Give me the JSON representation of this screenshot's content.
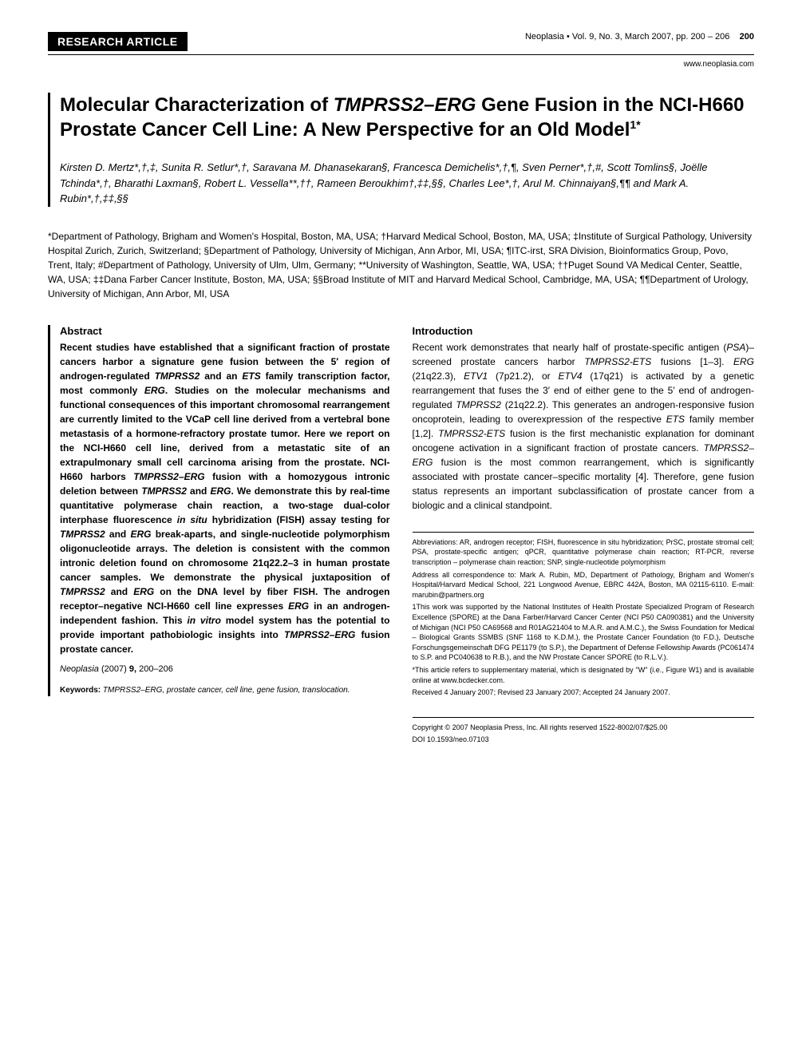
{
  "header": {
    "badge": "RESEARCH ARTICLE",
    "journal": "Neoplasia",
    "volume": "Vol. 9, No. 3, March 2007, pp. 200 – 206",
    "page": "200",
    "website": "www.neoplasia.com"
  },
  "title": {
    "line1": "Molecular Characterization of ",
    "gene1": "TMPRSS2–ERG",
    "line2": " Gene Fusion in the NCI-H660 Prostate Cancer Cell Line: A New Perspective for an Old Model",
    "sup": "1*"
  },
  "authors": "Kirsten D. Mertz*,†,‡, Sunita R. Setlur*,†, Saravana M. Dhanasekaran§, Francesca Demichelis*,†,¶, Sven Perner*,†,#, Scott Tomlins§, Joëlle Tchinda*,†, Bharathi Laxman§, Robert L. Vessella**,††, Rameen Beroukhim†,‡‡,§§, Charles Lee*,†, Arul M. Chinnaiyan§,¶¶ and Mark A. Rubin*,†,‡‡,§§",
  "affiliations": "*Department of Pathology, Brigham and Women's Hospital, Boston, MA, USA; †Harvard Medical School, Boston, MA, USA; ‡Institute of Surgical Pathology, University Hospital Zurich, Zurich, Switzerland; §Department of Pathology, University of Michigan, Ann Arbor, MI, USA; ¶ITC-irst, SRA Division, Bioinformatics Group, Povo, Trent, Italy; #Department of Pathology, University of Ulm, Ulm, Germany; **University of Washington, Seattle, WA, USA; ††Puget Sound VA Medical Center, Seattle, WA, USA; ‡‡Dana Farber Cancer Institute, Boston, MA, USA; §§Broad Institute of MIT and Harvard Medical School, Cambridge, MA, USA; ¶¶Department of Urology, University of Michigan, Ann Arbor, MI, USA",
  "abstract": {
    "heading": "Abstract",
    "body_html": "Recent studies have established that a significant fraction of prostate cancers harbor a signature gene fusion between the 5′ region of androgen-regulated <span class='italic'>TMPRSS2</span> and an <span class='italic'>ETS</span> family transcription factor, most commonly <span class='italic'>ERG</span>. Studies on the molecular mechanisms and functional consequences of this important chromosomal rearrangement are currently limited to the VCaP cell line derived from a vertebral bone metastasis of a hormone-refractory prostate tumor. Here we report on the NCI-H660 cell line, derived from a metastatic site of an extrapulmonary small cell carcinoma arising from the prostate. NCI-H660 harbors <span class='italic'>TMPRSS2–ERG</span> fusion with a homozygous intronic deletion between <span class='italic'>TMPRSS2</span> and <span class='italic'>ERG</span>. We demonstrate this by real-time quantitative polymerase chain reaction, a two-stage dual-color interphase fluorescence <span class='italic'>in situ</span> hybridization (FISH) assay testing for <span class='italic'>TMPRSS2</span> and <span class='italic'>ERG</span> break-aparts, and single-nucleotide polymorphism oligonucleotide arrays. The deletion is consistent with the common intronic deletion found on chromosome 21q22.2–3 in human prostate cancer samples. We demonstrate the physical juxtaposition of <span class='italic'>TMPRSS2</span> and <span class='italic'>ERG</span> on the DNA level by fiber FISH. The androgen receptor–negative NCI-H660 cell line expresses <span class='italic'>ERG</span> in an androgen-independent fashion. This <span class='italic'>in vitro</span> model system has the potential to provide important pathobiologic insights into <span class='italic'>TMPRSS2–ERG</span> fusion prostate cancer."
  },
  "citation": {
    "journal": "Neoplasia",
    "detail": " (2007) ",
    "volume": "9,",
    "pages": " 200–206"
  },
  "keywords": {
    "label": "Keywords:",
    "text": " TMPRSS2–ERG, prostate cancer, cell line, gene fusion, translocation."
  },
  "introduction": {
    "heading": "Introduction",
    "body_html": "Recent work demonstrates that nearly half of prostate-specific antigen (<span class='italic'>PSA</span>)–screened prostate cancers harbor <span class='italic'>TMPRSS2-ETS</span> fusions [1–3]. <span class='italic'>ERG</span> (21q22.3), <span class='italic'>ETV1</span> (7p21.2), or <span class='italic'>ETV4</span> (17q21) is activated by a genetic rearrangement that fuses the 3′ end of either gene to the 5′ end of androgen-regulated <span class='italic'>TMPRSS2</span> (21q22.2). This generates an androgen-responsive fusion oncoprotein, leading to overexpression of the respective <span class='italic'>ETS</span> family member [1,2]. <span class='italic'>TMPRSS2-ETS</span> fusion is the first mechanistic explanation for dominant oncogene activation in a significant fraction of prostate cancers. <span class='italic'>TMPRSS2–ERG</span> fusion is the most common rearrangement, which is significantly associated with prostate cancer–specific mortality [4]. Therefore, gene fusion status represents an important subclassification of prostate cancer from a biologic and a clinical standpoint."
  },
  "footnotes": {
    "abbrev": "Abbreviations: AR, androgen receptor; FISH, fluorescence in situ hybridization; PrSC, prostate stromal cell; PSA, prostate-specific antigen; qPCR, quantitative polymerase chain reaction; RT-PCR, reverse transcription – polymerase chain reaction; SNP, single-nucleotide polymorphism",
    "correspondence": "Address all correspondence to: Mark A. Rubin, MD, Department of Pathology, Brigham and Women's Hospital/Harvard Medical School, 221 Longwood Avenue, EBRC 442A, Boston, MA 02115-6110. E-mail: marubin@partners.org",
    "funding": "1This work was supported by the National Institutes of Health Prostate Specialized Program of Research Excellence (SPORE) at the Dana Farber/Harvard Cancer Center (NCI P50 CA090381) and the University of Michigan (NCI P50 CA69568 and R01AG21404 to M.A.R. and A.M.C.), the Swiss Foundation for Medical – Biological Grants SSMBS (SNF 1168 to K.D.M.), the Prostate Cancer Foundation (to F.D.), Deutsche Forschungsgemeinschaft DFG PE1179 (to S.P.), the Department of Defense Fellowship Awards (PC061474 to S.P. and PC040638 to R.B.), and the NW Prostate Cancer SPORE (to R.L.V.).",
    "supp": "*This article refers to supplementary material, which is designated by \"W\" (i.e., Figure W1) and is available online at www.bcdecker.com.",
    "received": "Received 4 January 2007; Revised 23 January 2007; Accepted 24 January 2007.",
    "copyright": "Copyright © 2007 Neoplasia Press, Inc. All rights reserved 1522-8002/07/$25.00",
    "doi": "DOI 10.1593/neo.07103"
  },
  "style": {
    "background": "#ffffff",
    "text_color": "#000000",
    "badge_bg": "#000000",
    "badge_fg": "#ffffff",
    "title_fontsize": 24,
    "body_fontsize": 12,
    "footnote_fontsize": 9
  }
}
